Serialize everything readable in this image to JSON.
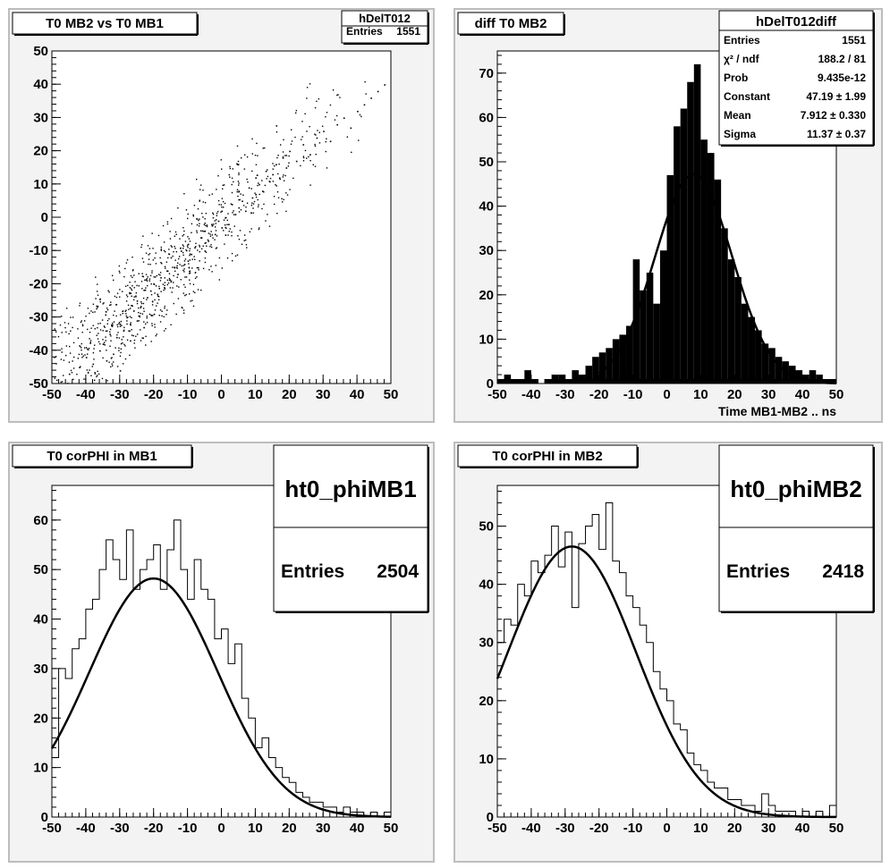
{
  "pads": [
    {
      "title": "T0 MB2 vs T0 MB1",
      "stats": {
        "name": "hDelT012",
        "rows": [
          {
            "label": "Entries",
            "value": "1551"
          }
        ]
      },
      "xlabel": "",
      "xticks": [
        "-50",
        "-40",
        "-30",
        "-20",
        "-10",
        "0",
        "10",
        "20",
        "30",
        "40",
        "50"
      ],
      "yticks": [
        "-50",
        "-40",
        "-30",
        "-20",
        "-10",
        "0",
        "10",
        "20",
        "30",
        "40",
        "50"
      ]
    },
    {
      "title": "diff T0 MB2",
      "stats": {
        "name": "hDelT012diff",
        "rows": [
          {
            "label": "Entries",
            "value": "1551"
          },
          {
            "label": "χ² / ndf",
            "value": "188.2 / 81"
          },
          {
            "label": "Prob",
            "value": "9.435e-12"
          },
          {
            "label": "Constant",
            "value": "47.19 ± 1.99"
          },
          {
            "label": "Mean",
            "value": "7.912 ± 0.330"
          },
          {
            "label": "Sigma",
            "value": "11.37 ± 0.37"
          }
        ]
      },
      "xlabel": "Time MB1-MB2  ..  ns",
      "xticks": [
        "-50",
        "-40",
        "-30",
        "-20",
        "-10",
        "0",
        "10",
        "20",
        "30",
        "40",
        "50"
      ],
      "yticks": [
        "0",
        "10",
        "20",
        "30",
        "40",
        "50",
        "60",
        "70"
      ]
    },
    {
      "title": "T0 corPHI in MB1",
      "stats": {
        "name": "ht0_phiMB1",
        "rows": [
          {
            "label": "Entries",
            "value": "2504"
          }
        ]
      },
      "xlabel": "",
      "xticks": [
        "-50",
        "-40",
        "-30",
        "-20",
        "-10",
        "0",
        "10",
        "20",
        "30",
        "40",
        "50"
      ],
      "yticks": [
        "0",
        "10",
        "20",
        "30",
        "40",
        "50",
        "60"
      ]
    },
    {
      "title": "T0 corPHI in MB2",
      "stats": {
        "name": "ht0_phiMB2",
        "rows": [
          {
            "label": "Entries",
            "value": "2418"
          }
        ]
      },
      "xlabel": "",
      "xticks": [
        "-50",
        "-40",
        "-30",
        "-20",
        "-10",
        "0",
        "10",
        "20",
        "30",
        "40",
        "50"
      ],
      "yticks": [
        "0",
        "10",
        "20",
        "30",
        "40",
        "50"
      ]
    }
  ],
  "chart_data": [
    {
      "type": "scatter",
      "title": "T0 MB2 vs T0 MB1",
      "xlim": [
        -50,
        50
      ],
      "ylim": [
        -50,
        50
      ],
      "points_description": "1551 entries, positively correlated cloud along y ≈ x, densest near (-20,-20)",
      "series": [
        {
          "x": [
            -45,
            -42,
            -40,
            -38,
            -36,
            -35,
            -34,
            -33,
            -32,
            -31,
            -30,
            -30,
            -29,
            -28,
            -27,
            -26,
            -25,
            -25,
            -24,
            -23,
            -22,
            -21,
            -20,
            -20,
            -19,
            -18,
            -17,
            -16,
            -15,
            -15,
            -14,
            -13,
            -12,
            -11,
            -10,
            -10,
            -9,
            -8,
            -7,
            -6,
            -5,
            -5,
            -4,
            -3,
            -2,
            -1,
            0,
            0,
            1,
            2,
            3,
            4,
            5,
            5,
            6,
            7,
            8,
            9,
            10,
            10,
            11,
            12,
            13,
            14,
            15,
            16,
            17,
            18,
            19,
            20,
            22,
            24,
            26,
            28,
            30,
            32,
            34,
            36,
            38,
            40,
            42,
            44,
            46,
            48
          ],
          "y": [
            -47,
            -45,
            -42,
            -44,
            -40,
            -38,
            -43,
            -35,
            -41,
            -36,
            -32,
            -46,
            -34,
            -30,
            -37,
            -28,
            -31,
            -25,
            -27,
            -33,
            -24,
            -22,
            -20,
            -29,
            -23,
            -18,
            -21,
            -16,
            -19,
            -12,
            -15,
            -17,
            -10,
            -14,
            -13,
            -8,
            -11,
            -9,
            -15,
            -6,
            -10,
            -4,
            -7,
            -2,
            -5,
            -1,
            -3,
            2,
            0,
            -2,
            4,
            1,
            3,
            8,
            5,
            2,
            9,
            6,
            7,
            12,
            10,
            8,
            14,
            11,
            13,
            16,
            12,
            18,
            15,
            20,
            17,
            22,
            19,
            24,
            26,
            23,
            28,
            30,
            27,
            32,
            34,
            36,
            38,
            40
          ]
        }
      ]
    },
    {
      "type": "bar",
      "title": "diff T0 MB2",
      "xlabel": "Time MB1-MB2  ..  ns",
      "xlim": [
        -50,
        50
      ],
      "ylim": [
        0,
        75
      ],
      "x": [
        -49,
        -47,
        -45,
        -43,
        -41,
        -39,
        -37,
        -35,
        -33,
        -31,
        -29,
        -27,
        -25,
        -23,
        -21,
        -19,
        -17,
        -15,
        -13,
        -11,
        -9,
        -7,
        -5,
        -3,
        -1,
        1,
        3,
        5,
        7,
        9,
        11,
        13,
        15,
        17,
        19,
        21,
        23,
        25,
        27,
        29,
        31,
        33,
        35,
        37,
        39,
        41,
        43,
        45,
        47,
        49
      ],
      "values": [
        1,
        2,
        1,
        1,
        3,
        1,
        0,
        1,
        2,
        2,
        1,
        3,
        2,
        4,
        6,
        7,
        8,
        10,
        11,
        13,
        28,
        21,
        25,
        18,
        30,
        47,
        58,
        62,
        68,
        72,
        55,
        52,
        46,
        35,
        28,
        24,
        18,
        15,
        12,
        9,
        8,
        6,
        5,
        4,
        3,
        2,
        3,
        2,
        1,
        1
      ],
      "fit": {
        "type": "gaussian",
        "constant": 47.19,
        "mean": 7.912,
        "sigma": 11.37,
        "x_range": [
          -20,
          50
        ]
      }
    },
    {
      "type": "line",
      "title": "T0 corPHI in MB1",
      "xlim": [
        -50,
        50
      ],
      "ylim": [
        0,
        67
      ],
      "x": [
        -49,
        -47,
        -45,
        -43,
        -41,
        -39,
        -37,
        -35,
        -33,
        -31,
        -29,
        -27,
        -25,
        -23,
        -21,
        -19,
        -17,
        -15,
        -13,
        -11,
        -9,
        -7,
        -5,
        -3,
        -1,
        1,
        3,
        5,
        7,
        9,
        11,
        13,
        15,
        17,
        19,
        21,
        23,
        25,
        27,
        29,
        31,
        33,
        35,
        37,
        39,
        41,
        43,
        45,
        47,
        49
      ],
      "values": [
        12,
        30,
        28,
        34,
        36,
        42,
        44,
        50,
        56,
        52,
        48,
        58,
        46,
        50,
        52,
        55,
        46,
        54,
        60,
        50,
        44,
        52,
        46,
        44,
        36,
        38,
        31,
        35,
        24,
        20,
        14,
        16,
        12,
        10,
        8,
        7,
        5,
        4,
        3,
        3,
        2,
        2,
        1,
        2,
        1,
        1,
        0,
        1,
        0,
        1
      ],
      "fit": {
        "type": "gaussian",
        "constant": 48.2,
        "mean": -20.0,
        "sigma": 19.0,
        "x_range": [
          -50,
          50
        ]
      }
    },
    {
      "type": "line",
      "title": "T0 corPHI in MB2",
      "xlim": [
        -50,
        50
      ],
      "ylim": [
        0,
        57
      ],
      "x": [
        -49,
        -47,
        -45,
        -43,
        -41,
        -39,
        -37,
        -35,
        -33,
        -31,
        -29,
        -27,
        -25,
        -23,
        -21,
        -19,
        -17,
        -15,
        -13,
        -11,
        -9,
        -7,
        -5,
        -3,
        -1,
        1,
        3,
        5,
        7,
        9,
        11,
        13,
        15,
        17,
        19,
        21,
        23,
        25,
        27,
        29,
        31,
        33,
        35,
        37,
        39,
        41,
        43,
        45,
        47,
        49
      ],
      "values": [
        30,
        34,
        33,
        40,
        38,
        44,
        42,
        45,
        50,
        43,
        49,
        36,
        47,
        50,
        52,
        46,
        54,
        44,
        42,
        38,
        36,
        33,
        30,
        25,
        22,
        20,
        16,
        15,
        11,
        9,
        8,
        6,
        5,
        5,
        3,
        3,
        2,
        2,
        1,
        4,
        2,
        1,
        1,
        1,
        0,
        1,
        0,
        1,
        0,
        2
      ],
      "fit": {
        "type": "gaussian",
        "constant": 46.5,
        "mean": -28.0,
        "sigma": 19.0,
        "x_range": [
          -50,
          50
        ]
      }
    }
  ]
}
